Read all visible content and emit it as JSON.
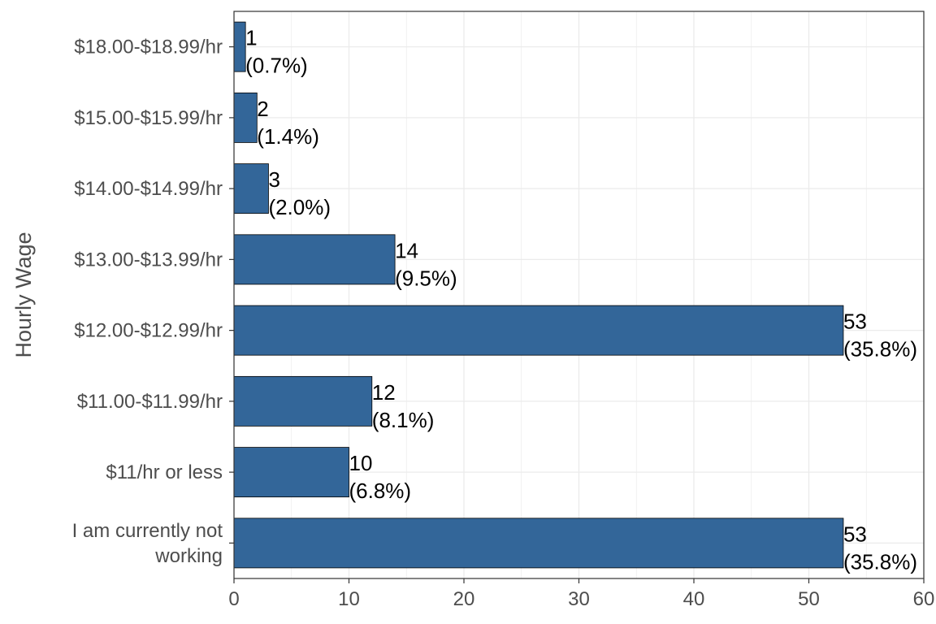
{
  "chart_data": {
    "type": "bar",
    "orientation": "horizontal",
    "title": "",
    "xlabel": "",
    "ylabel": "Hourly Wage",
    "xlim": [
      0,
      60
    ],
    "x_ticks": [
      0,
      10,
      20,
      30,
      40,
      50,
      60
    ],
    "grid": true,
    "categories": [
      [
        "$18.00-$18.99/hr"
      ],
      [
        "$15.00-$15.99/hr"
      ],
      [
        "$14.00-$14.99/hr"
      ],
      [
        "$13.00-$13.99/hr"
      ],
      [
        "$12.00-$12.99/hr"
      ],
      [
        "$11.00-$11.99/hr"
      ],
      [
        "$11/hr or less"
      ],
      [
        "I am currently not",
        "working"
      ]
    ],
    "values": [
      1,
      2,
      3,
      14,
      53,
      12,
      10,
      53
    ],
    "percent_labels": [
      "(0.7%)",
      "(1.4%)",
      "(2.0%)",
      "(9.5%)",
      "(35.8%)",
      "(8.1%)",
      "(6.8%)",
      "(35.8%)"
    ],
    "bar_color": "#336699",
    "bar_outline": "#000000"
  }
}
